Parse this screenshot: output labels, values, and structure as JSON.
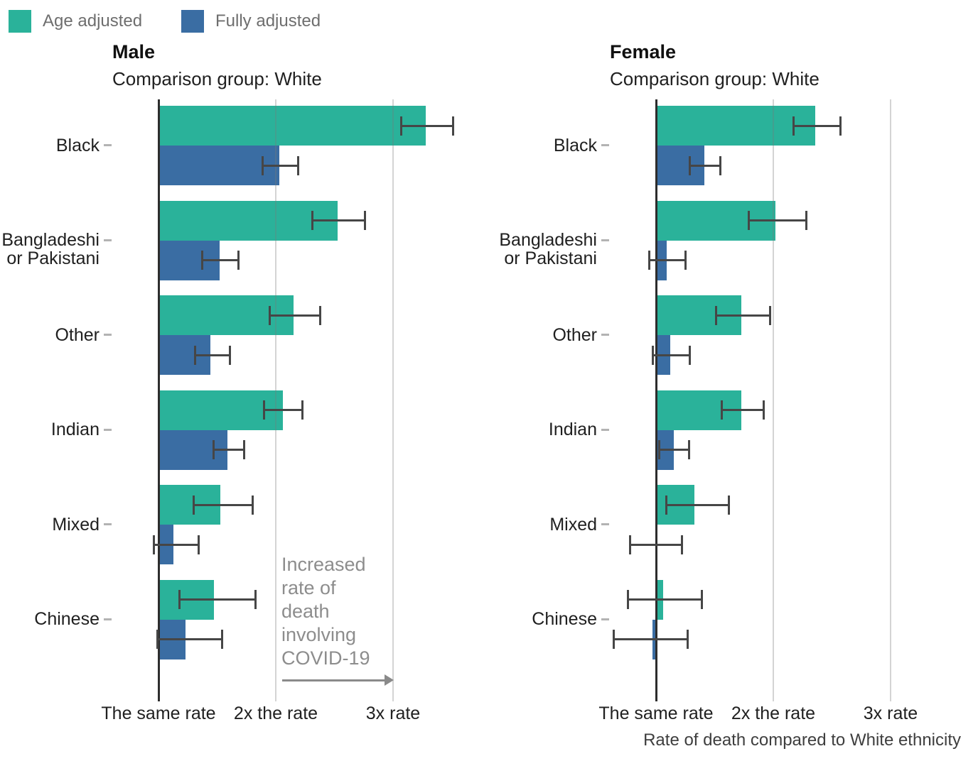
{
  "chart_data": {
    "type": "bar",
    "orientation": "horizontal",
    "title": "",
    "caption": "Rate of death compared to White ethnicity",
    "legend_position": "top-left",
    "legend": [
      {
        "label": "Age adjusted",
        "color": "#2ab29a"
      },
      {
        "label": "Fully adjusted",
        "color": "#3a6da3"
      }
    ],
    "categories": [
      "Black",
      "Bangladeshi or Pakistani",
      "Other",
      "Indian",
      "Mixed",
      "Chinese"
    ],
    "category_lines": [
      [
        "Black"
      ],
      [
        "Bangladeshi",
        "or Pakistani"
      ],
      [
        "Other"
      ],
      [
        "Indian"
      ],
      [
        "Mixed"
      ],
      [
        "Chinese"
      ]
    ],
    "x_axis": {
      "label": "Rate of death compared to White ethnicity",
      "tick_values": [
        1,
        2,
        3
      ],
      "tick_labels": [
        "The same rate",
        "2x the rate",
        "3x rate"
      ],
      "range": [
        0.55,
        3.65
      ],
      "grid": "vertical gridlines at 2x and 3x, solid axis line at 1x"
    },
    "annotation": {
      "text": "Increased rate of death involving COVID-19",
      "lines": [
        "Increased",
        "rate of",
        "death",
        "involving",
        "COVID-19"
      ],
      "arrow": "points right toward 3x gridline"
    },
    "panels": [
      {
        "title": "Male",
        "subtitle": "Comparison group: White",
        "series": [
          {
            "name": "Age adjusted",
            "color": "#2ab29a",
            "values": [
              3.28,
              2.53,
              2.15,
              2.06,
              1.53,
              1.47
            ],
            "ci_low": [
              3.07,
              2.31,
              1.95,
              1.9,
              1.3,
              1.18
            ],
            "ci_high": [
              3.51,
              2.76,
              2.38,
              2.23,
              1.8,
              1.83
            ]
          },
          {
            "name": "Fully adjusted",
            "color": "#3a6da3",
            "values": [
              2.03,
              1.52,
              1.44,
              1.59,
              1.13,
              1.23
            ],
            "ci_low": [
              1.89,
              1.37,
              1.31,
              1.47,
              0.96,
              0.99
            ],
            "ci_high": [
              2.19,
              1.68,
              1.61,
              1.73,
              1.34,
              1.54
            ]
          }
        ]
      },
      {
        "title": "Female",
        "subtitle": "Comparison group: White",
        "series": [
          {
            "name": "Age adjusted",
            "color": "#2ab29a",
            "values": [
              2.36,
              2.02,
              1.73,
              1.73,
              1.33,
              1.06
            ],
            "ci_low": [
              2.17,
              1.79,
              1.51,
              1.56,
              1.09,
              0.76
            ],
            "ci_high": [
              2.57,
              2.28,
              1.97,
              1.92,
              1.62,
              1.39
            ]
          },
          {
            "name": "Fully adjusted",
            "color": "#3a6da3",
            "values": [
              1.41,
              1.09,
              1.12,
              1.15,
              1.0,
              0.97
            ],
            "ci_low": [
              1.29,
              0.94,
              0.97,
              1.03,
              0.78,
              0.64
            ],
            "ci_high": [
              1.55,
              1.25,
              1.29,
              1.28,
              1.22,
              1.27
            ]
          }
        ]
      }
    ]
  }
}
